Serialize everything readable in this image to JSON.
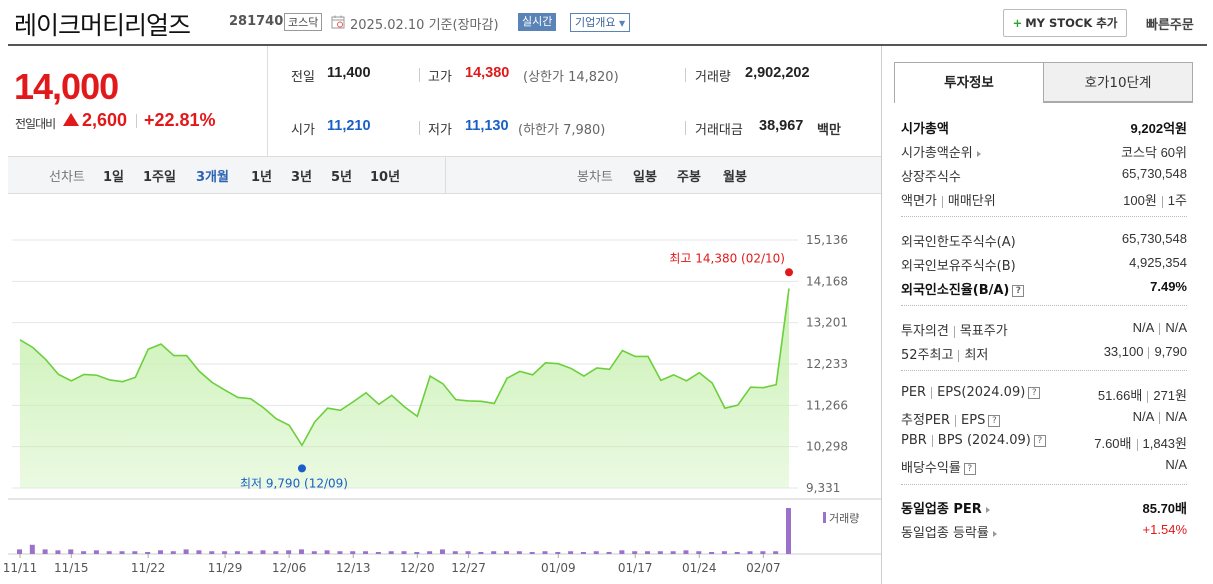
{
  "header": {
    "company_name": "레이크머티리얼즈",
    "stock_code": "281740",
    "market": "코스닥",
    "date": "2025.02.10",
    "date_basis": "기준(장마감)",
    "realtime_label": "실시간",
    "overview_label": "기업개요",
    "mystock_label": "MY STOCK 추가",
    "quick_order_label": "빠른주문"
  },
  "price": {
    "current": "14,000",
    "change_label": "전일대비",
    "change_value": "2,600",
    "change_rate": "+22.81%"
  },
  "stats": {
    "prev_close_label": "전일",
    "prev_close": "11,400",
    "high_label": "고가",
    "high": "14,380",
    "upper_limit": "(상한가 14,820)",
    "volume_label": "거래량",
    "volume": "2,902,202",
    "open_label": "시가",
    "open": "11,210",
    "low_label": "저가",
    "low": "11,130",
    "lower_limit": "(하한가 7,980)",
    "trade_value_label": "거래대금",
    "trade_value": "38,967",
    "trade_value_unit": "백만"
  },
  "period_bar": {
    "line_chart_label": "선차트",
    "line_periods": [
      "1일",
      "1주일",
      "3개월",
      "1년",
      "3년",
      "5년",
      "10년"
    ],
    "active_period": "3개월",
    "candle_label": "봉차트",
    "candle_periods": [
      "일봉",
      "주봉",
      "월봉"
    ]
  },
  "chart_data": {
    "type": "area",
    "y_ticks": [
      "15,136",
      "14,168",
      "13,201",
      "12,233",
      "11,266",
      "10,298",
      "9,331"
    ],
    "ylim": [
      9331,
      15136
    ],
    "x_ticks": [
      "11/11",
      "11/15",
      "11/22",
      "11/29",
      "12/06",
      "12/13",
      "12/20",
      "12/27",
      "01/09",
      "01/17",
      "01/24",
      "02/07"
    ],
    "values": [
      12800,
      12620,
      12340,
      11990,
      11840,
      11990,
      11970,
      11860,
      11820,
      11920,
      12580,
      12700,
      12430,
      12430,
      12060,
      11800,
      11620,
      11450,
      11420,
      11210,
      10950,
      10800,
      10330,
      10880,
      11200,
      11150,
      11350,
      11560,
      11290,
      11500,
      11230,
      11010,
      11950,
      11770,
      11400,
      11370,
      11360,
      11310,
      11900,
      12060,
      11980,
      12260,
      12240,
      12130,
      11950,
      12140,
      12110,
      12550,
      12410,
      12410,
      11850,
      11980,
      11840,
      12030,
      11790,
      11200,
      11270,
      11690,
      11680,
      11750,
      14000
    ],
    "high_annotation": "최고 14,380 (02/10)",
    "low_annotation": "최저 9,790 (12/09)",
    "volume_label": "거래량",
    "volume_values": [
      0.1,
      0.2,
      0.1,
      0.08,
      0.1,
      0.06,
      0.08,
      0.06,
      0.06,
      0.06,
      0.04,
      0.08,
      0.06,
      0.1,
      0.08,
      0.06,
      0.06,
      0.06,
      0.06,
      0.08,
      0.06,
      0.08,
      0.1,
      0.06,
      0.08,
      0.06,
      0.06,
      0.06,
      0.04,
      0.06,
      0.06,
      0.04,
      0.06,
      0.1,
      0.06,
      0.06,
      0.04,
      0.06,
      0.06,
      0.06,
      0.04,
      0.06,
      0.04,
      0.06,
      0.04,
      0.06,
      0.04,
      0.08,
      0.06,
      0.06,
      0.06,
      0.06,
      0.08,
      0.06,
      0.04,
      0.06,
      0.04,
      0.06,
      0.06,
      0.06,
      1.0
    ],
    "colors": {
      "line": "#6ccf3c",
      "area": "#c6f0ae",
      "high": "#e2191b",
      "low": "#1a5fc7",
      "volume": "#9a72c9"
    }
  },
  "right_panel": {
    "tab_info": "투자정보",
    "tab_orderbook": "호가10단계",
    "sections": [
      [
        {
          "k": "시가총액",
          "v": "9,202억원",
          "bold": true
        },
        {
          "k": "시가총액순위",
          "v": "코스닥 60위",
          "arrow": true
        },
        {
          "k": "상장주식수",
          "v": "65,730,548"
        },
        {
          "k": "액면가",
          "k2": "매매단위",
          "v": "100원",
          "v2": "1주"
        }
      ],
      [
        {
          "k": "외국인한도주식수(A)",
          "v": "65,730,548"
        },
        {
          "k": "외국인보유주식수(B)",
          "v": "4,925,354"
        },
        {
          "k": "외국인소진율(B/A)",
          "v": "7.49%",
          "bold": true,
          "q": true
        }
      ],
      [
        {
          "k": "투자의견",
          "k2": "목표주가",
          "v": "N/A",
          "v2": "N/A"
        },
        {
          "k": "52주최고",
          "k2": "최저",
          "v": "33,100",
          "v2": "9,790"
        }
      ],
      [
        {
          "k": "PER",
          "k2": "EPS(2024.09)",
          "v": "51.66배",
          "v2": "271원",
          "q": true
        },
        {
          "k": "추정PER",
          "k2": "EPS",
          "v": "N/A",
          "v2": "N/A",
          "q": true
        },
        {
          "k": "PBR",
          "k2": "BPS (2024.09)",
          "v": "7.60배",
          "v2": "1,843원",
          "q": true
        },
        {
          "k": "배당수익률",
          "v": "N/A",
          "q": true
        }
      ],
      [
        {
          "k": "동일업종 PER",
          "v": "85.70배",
          "bold": true,
          "arrow": true
        },
        {
          "k": "동일업종 등락률",
          "v": "+1.54%",
          "arrow": true,
          "red": true
        }
      ]
    ]
  }
}
